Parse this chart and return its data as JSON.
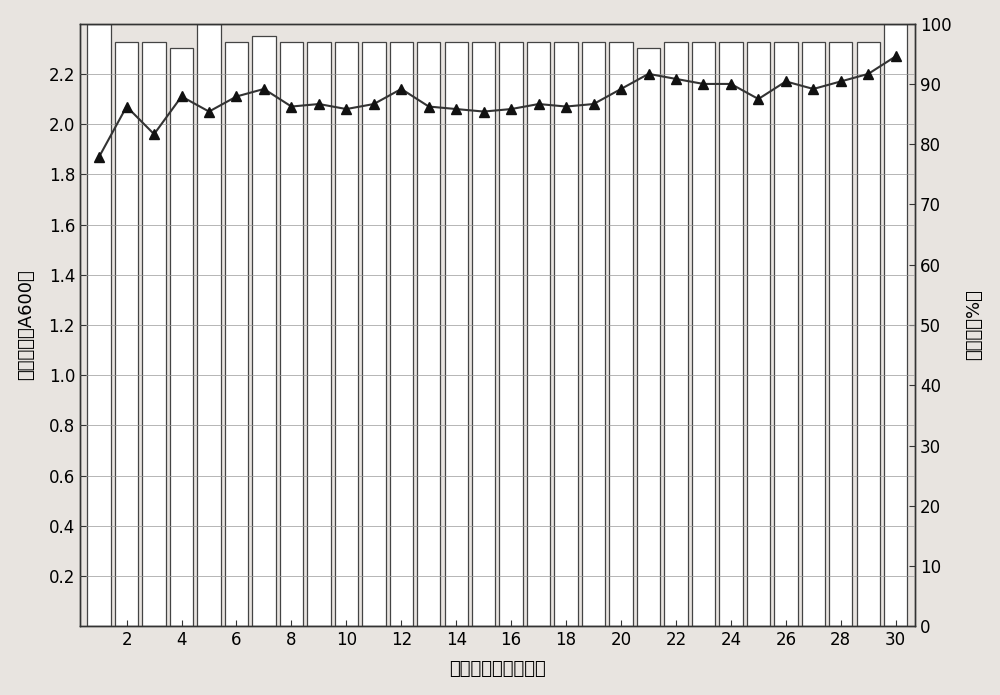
{
  "x": [
    1,
    2,
    3,
    4,
    5,
    6,
    7,
    8,
    9,
    10,
    11,
    12,
    13,
    14,
    15,
    16,
    17,
    18,
    19,
    20,
    21,
    22,
    23,
    24,
    25,
    26,
    27,
    28,
    29,
    30
  ],
  "bar_heights_right": [
    100,
    97,
    97,
    96,
    100,
    97,
    98,
    97,
    97,
    97,
    97,
    97,
    97,
    97,
    97,
    97,
    97,
    97,
    97,
    97,
    96,
    97,
    97,
    97,
    97,
    97,
    97,
    97,
    97,
    100
  ],
  "line_values_left": [
    1.87,
    2.07,
    1.96,
    2.11,
    2.05,
    2.11,
    2.14,
    2.07,
    2.08,
    2.06,
    2.08,
    2.14,
    2.07,
    2.06,
    2.05,
    2.06,
    2.08,
    2.07,
    2.08,
    2.14,
    2.2,
    2.18,
    2.16,
    2.16,
    2.1,
    2.17,
    2.14,
    2.17,
    2.2,
    2.27
  ],
  "bar_color": "#ffffff",
  "bar_edge_color": "#444444",
  "line_color": "#333333",
  "marker_color": "#111111",
  "ylabel_left": "吸光度値（A600）",
  "ylabel_right": "絮凝率（%）",
  "xlabel": "连续发酵周期（次）",
  "ylim_left": [
    0,
    2.4
  ],
  "ylim_right": [
    0,
    100
  ],
  "yticks_left": [
    0.2,
    0.4,
    0.6,
    0.8,
    1.0,
    1.2,
    1.4,
    1.6,
    1.8,
    2.0,
    2.2
  ],
  "yticks_right": [
    0,
    10,
    20,
    30,
    40,
    50,
    60,
    70,
    80,
    90,
    100
  ],
  "xticks": [
    2,
    4,
    6,
    8,
    10,
    12,
    14,
    16,
    18,
    20,
    22,
    24,
    26,
    28,
    30
  ],
  "bar_width": 0.85,
  "background_color": "#e8e4e0",
  "plot_bg_color": "#d8d4d0",
  "figsize": [
    10.0,
    6.95
  ],
  "dpi": 100
}
